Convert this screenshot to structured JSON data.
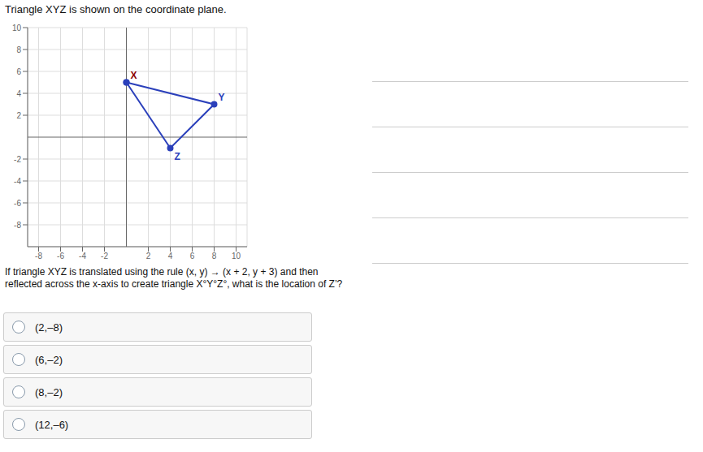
{
  "chart_data": {
    "type": "line",
    "title": "Triangle XYZ is shown on the coordinate plane.",
    "x": [
      0,
      8,
      4,
      0
    ],
    "values": [
      5,
      3,
      -1,
      5
    ],
    "color": "#2b40bb",
    "marker": "circle",
    "xlim": [
      -9,
      11
    ],
    "ylim": [
      -10,
      10
    ],
    "xticks": [
      -8,
      -6,
      -4,
      -2,
      2,
      4,
      6,
      8,
      10
    ],
    "yticks": [
      -8,
      -6,
      -4,
      -2,
      2,
      4,
      6,
      8,
      10
    ],
    "grid": true,
    "annotations": [
      {
        "text": "X",
        "x": 0,
        "y": 5,
        "color": "#8B0000"
      },
      {
        "text": "Y",
        "x": 8,
        "y": 3,
        "color": "#2b40bb"
      },
      {
        "text": "Z",
        "x": 4,
        "y": -1,
        "color": "#2b40bb"
      }
    ],
    "question": "If triangle XYZ is translated using the rule (x, y) → (x + 2, y + 3) and then reflected across the x-axis to create triangle X°Y°Z°, what is the location of Z’?",
    "choices": [
      "(2,–8)",
      "(6,–2)",
      "(8,–2)",
      "(12,–6)"
    ]
  }
}
